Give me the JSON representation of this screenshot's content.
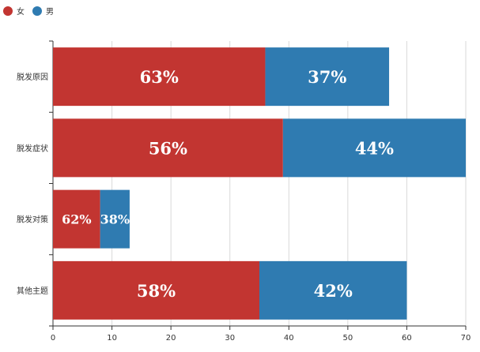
{
  "colors": {
    "female": "#c23531",
    "male": "#2f7bb1",
    "grid": "#d9d9d9",
    "axis": "#333333"
  },
  "chart_data": {
    "type": "bar",
    "orientation": "horizontal",
    "stacked": true,
    "categories": [
      "脱发原因",
      "脱发症状",
      "脱发对策",
      "其他主题"
    ],
    "series": [
      {
        "name": "女",
        "values": [
          36,
          39,
          8,
          35
        ],
        "labels": [
          "63%",
          "56%",
          "62%",
          "58%"
        ]
      },
      {
        "name": "男",
        "values": [
          21,
          31,
          5,
          25
        ],
        "labels": [
          "37%",
          "44%",
          "38%",
          "42%"
        ]
      }
    ],
    "xlim": [
      0,
      70
    ],
    "xticks": [
      "0",
      "10",
      "20",
      "30",
      "40",
      "50",
      "60",
      "70"
    ],
    "grid": true,
    "legend": "top-left"
  }
}
